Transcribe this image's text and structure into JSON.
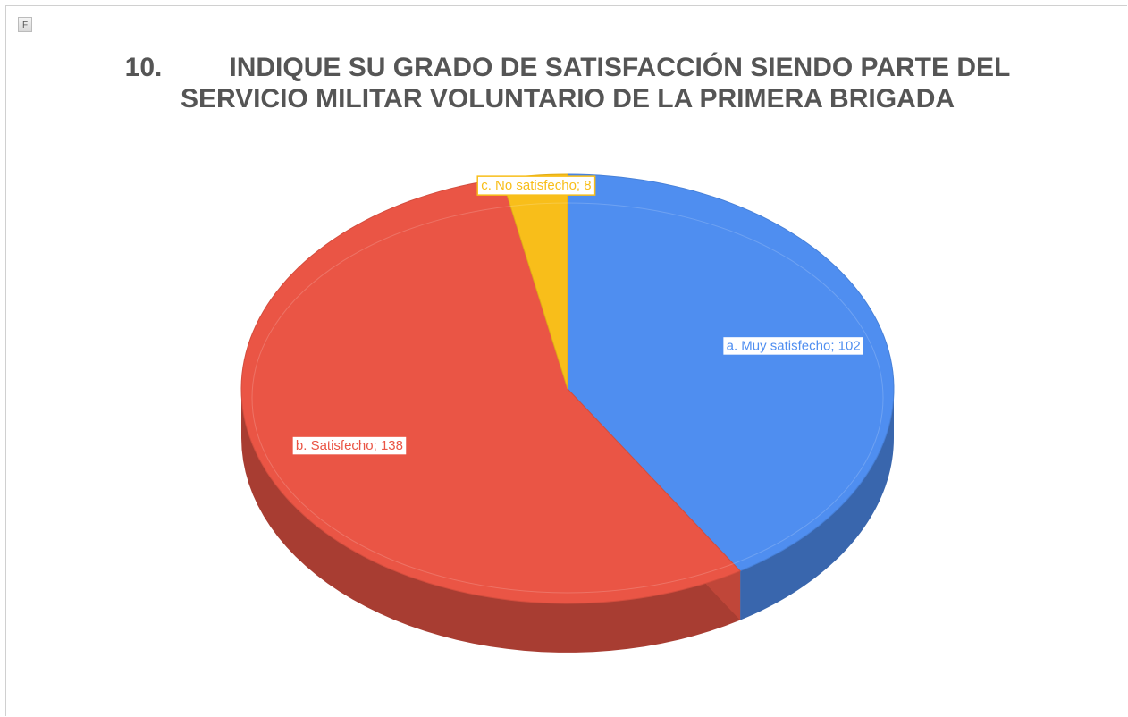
{
  "toolbar": {
    "button": "F"
  },
  "chart_data": {
    "type": "pie",
    "title": "10.         INDIQUE SU GRADO DE SATISFACCIÓN SIENDO PARTE DEL SERVICIO MILITAR VOLUNTARIO DE LA PRIMERA BRIGADA",
    "categories": [
      "a. Muy satisfecho",
      "b. Satisfecho",
      "c. No satisfecho"
    ],
    "values": [
      102,
      138,
      8
    ],
    "value_labels": [
      "a. Muy satisfecho; 102",
      "b. Satisfecho; 138",
      "c. No satisfecho; 8"
    ],
    "colors": [
      "#4f8ef0",
      "#ea5545",
      "#f8be1a"
    ]
  }
}
